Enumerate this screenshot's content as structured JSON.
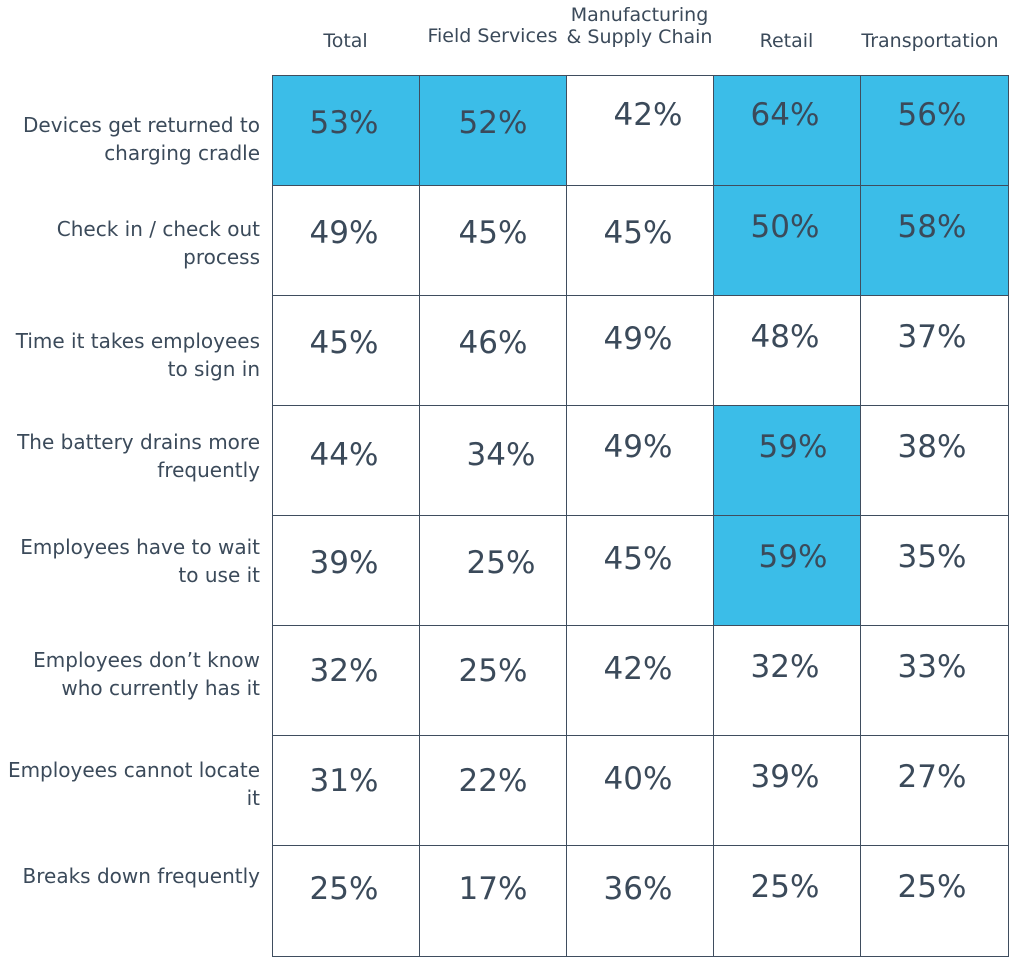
{
  "chart_data": {
    "type": "table",
    "columns": [
      "Total",
      "Field Services",
      "Manufacturing\n& Supply Chain",
      "Retail",
      "Transportation"
    ],
    "rows": [
      {
        "label": "Devices get returned to charging cradle",
        "values": [
          "53%",
          "52%",
          "42%",
          "64%",
          "56%"
        ],
        "highlight": [
          true,
          true,
          false,
          true,
          true
        ]
      },
      {
        "label": "Check in / check out process",
        "values": [
          "49%",
          "45%",
          "45%",
          "50%",
          "58%"
        ],
        "highlight": [
          false,
          false,
          false,
          true,
          true
        ]
      },
      {
        "label": "Time it takes employees to sign in",
        "values": [
          "45%",
          "46%",
          "49%",
          "48%",
          "37%"
        ],
        "highlight": [
          false,
          false,
          false,
          false,
          false
        ]
      },
      {
        "label": "The battery drains more frequently",
        "values": [
          "44%",
          "34%",
          "49%",
          "59%",
          "38%"
        ],
        "highlight": [
          false,
          false,
          false,
          true,
          false
        ]
      },
      {
        "label": "Employees have to wait to use it",
        "values": [
          "39%",
          "25%",
          "45%",
          "59%",
          "35%"
        ],
        "highlight": [
          false,
          false,
          false,
          true,
          false
        ]
      },
      {
        "label": "Employees don’t know who currently has it",
        "values": [
          "32%",
          "25%",
          "42%",
          "32%",
          "33%"
        ],
        "highlight": [
          false,
          false,
          false,
          false,
          false
        ]
      },
      {
        "label": "Employees cannot locate it",
        "values": [
          "31%",
          "22%",
          "40%",
          "39%",
          "27%"
        ],
        "highlight": [
          false,
          false,
          false,
          false,
          false
        ]
      },
      {
        "label": "Breaks down frequently",
        "values": [
          "25%",
          "17%",
          "36%",
          "25%",
          "25%"
        ],
        "highlight": [
          false,
          false,
          false,
          false,
          false
        ]
      }
    ],
    "highlight_color": "#3bbde8",
    "border_color": "#3f4d5e",
    "text_color": "#3b4a5a"
  }
}
